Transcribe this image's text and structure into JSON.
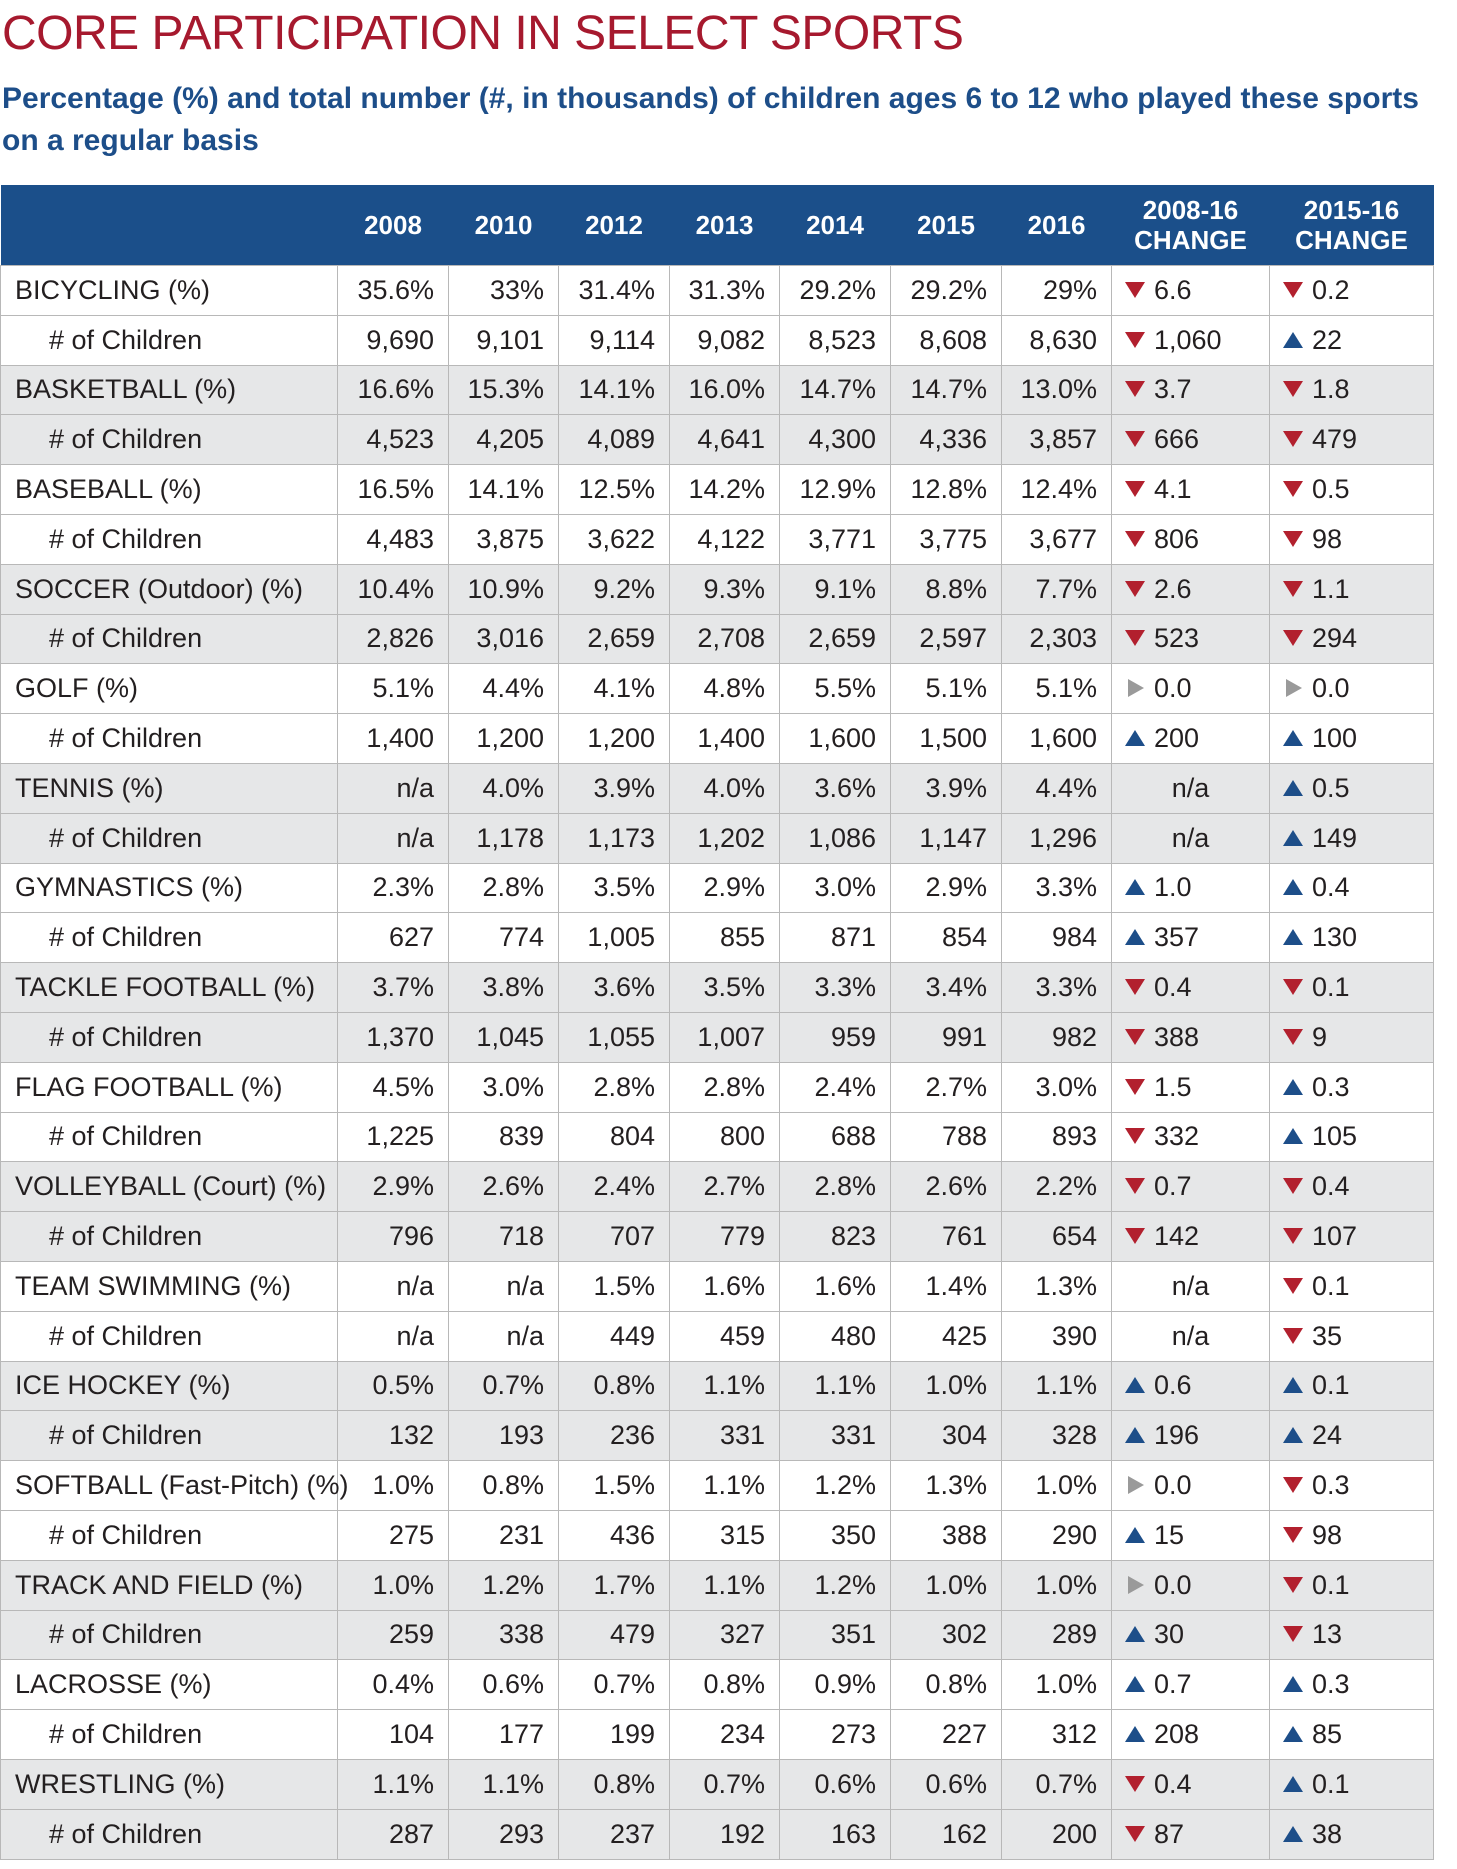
{
  "title": "CORE PARTICIPATION IN SELECT SPORTS",
  "subtitle": "Percentage (%) and total number (#, in thousands) of children ages 6 to 12 who played these sports on a regular basis",
  "table": {
    "header": [
      "2008",
      "2010",
      "2012",
      "2013",
      "2014",
      "2015",
      "2016",
      "2008-16 CHANGE",
      "2015-16 CHANGE"
    ],
    "rows": [
      {
        "label": "BICYCLING (%)",
        "cells": [
          "35.6%",
          "33%",
          "31.4%",
          "31.3%",
          "29.2%",
          "29.2%",
          "29%"
        ],
        "changes": [
          {
            "text": "6.6",
            "trend": "down"
          },
          {
            "text": "0.2",
            "trend": "down"
          }
        ]
      },
      {
        "label": "# of Children",
        "cells": [
          "9,690",
          "9,101",
          "9,114",
          "9,082",
          "8,523",
          "8,608",
          "8,630"
        ],
        "changes": [
          {
            "text": "1,060",
            "trend": "down"
          },
          {
            "text": "22",
            "trend": "up"
          }
        ]
      },
      {
        "label": "BASKETBALL (%)",
        "cells": [
          "16.6%",
          "15.3%",
          "14.1%",
          "16.0%",
          "14.7%",
          "14.7%",
          "13.0%"
        ],
        "changes": [
          {
            "text": "3.7",
            "trend": "down"
          },
          {
            "text": "1.8",
            "trend": "down"
          }
        ]
      },
      {
        "label": "# of Children",
        "cells": [
          "4,523",
          "4,205",
          "4,089",
          "4,641",
          "4,300",
          "4,336",
          "3,857"
        ],
        "changes": [
          {
            "text": "666",
            "trend": "down"
          },
          {
            "text": "479",
            "trend": "down"
          }
        ]
      },
      {
        "label": "BASEBALL (%)",
        "cells": [
          "16.5%",
          "14.1%",
          "12.5%",
          "14.2%",
          "12.9%",
          "12.8%",
          "12.4%"
        ],
        "changes": [
          {
            "text": "4.1",
            "trend": "down"
          },
          {
            "text": "0.5",
            "trend": "down"
          }
        ]
      },
      {
        "label": "# of Children",
        "cells": [
          "4,483",
          "3,875",
          "3,622",
          "4,122",
          "3,771",
          "3,775",
          "3,677"
        ],
        "changes": [
          {
            "text": "806",
            "trend": "down"
          },
          {
            "text": "98",
            "trend": "down"
          }
        ]
      },
      {
        "label": "SOCCER (Outdoor) (%)",
        "cells": [
          "10.4%",
          "10.9%",
          "9.2%",
          "9.3%",
          "9.1%",
          "8.8%",
          "7.7%"
        ],
        "changes": [
          {
            "text": "2.6",
            "trend": "down"
          },
          {
            "text": "1.1",
            "trend": "down"
          }
        ]
      },
      {
        "label": "# of Children",
        "cells": [
          "2,826",
          "3,016",
          "2,659",
          "2,708",
          "2,659",
          "2,597",
          "2,303"
        ],
        "changes": [
          {
            "text": "523",
            "trend": "down"
          },
          {
            "text": "294",
            "trend": "down"
          }
        ]
      },
      {
        "label": "GOLF (%)",
        "cells": [
          "5.1%",
          "4.4%",
          "4.1%",
          "4.8%",
          "5.5%",
          "5.1%",
          "5.1%"
        ],
        "changes": [
          {
            "text": "0.0",
            "trend": "flat"
          },
          {
            "text": "0.0",
            "trend": "flat"
          }
        ]
      },
      {
        "label": "# of Children",
        "cells": [
          "1,400",
          "1,200",
          "1,200",
          "1,400",
          "1,600",
          "1,500",
          "1,600"
        ],
        "changes": [
          {
            "text": "200",
            "trend": "up"
          },
          {
            "text": "100",
            "trend": "up"
          }
        ]
      },
      {
        "label": "TENNIS (%)",
        "cells": [
          "n/a",
          "4.0%",
          "3.9%",
          "4.0%",
          "3.6%",
          "3.9%",
          "4.4%"
        ],
        "changes": [
          {
            "text": "n/a"
          },
          {
            "text": "0.5",
            "trend": "up"
          }
        ]
      },
      {
        "label": "# of Children",
        "cells": [
          "n/a",
          "1,178",
          "1,173",
          "1,202",
          "1,086",
          "1,147",
          "1,296"
        ],
        "changes": [
          {
            "text": "n/a"
          },
          {
            "text": "149",
            "trend": "up"
          }
        ]
      },
      {
        "label": "GYMNASTICS (%)",
        "cells": [
          "2.3%",
          "2.8%",
          "3.5%",
          "2.9%",
          "3.0%",
          "2.9%",
          "3.3%"
        ],
        "changes": [
          {
            "text": "1.0",
            "trend": "up"
          },
          {
            "text": "0.4",
            "trend": "up"
          }
        ]
      },
      {
        "label": "# of Children",
        "cells": [
          "627",
          "774",
          "1,005",
          "855",
          "871",
          "854",
          "984"
        ],
        "changes": [
          {
            "text": "357",
            "trend": "up"
          },
          {
            "text": "130",
            "trend": "up"
          }
        ]
      },
      {
        "label": "TACKLE FOOTBALL (%)",
        "cells": [
          "3.7%",
          "3.8%",
          "3.6%",
          "3.5%",
          "3.3%",
          "3.4%",
          "3.3%"
        ],
        "changes": [
          {
            "text": "0.4",
            "trend": "down"
          },
          {
            "text": "0.1",
            "trend": "down"
          }
        ]
      },
      {
        "label": "# of Children",
        "cells": [
          "1,370",
          "1,045",
          "1,055",
          "1,007",
          "959",
          "991",
          "982"
        ],
        "changes": [
          {
            "text": "388",
            "trend": "down"
          },
          {
            "text": "9",
            "trend": "down"
          }
        ]
      },
      {
        "label": "FLAG FOOTBALL (%)",
        "cells": [
          "4.5%",
          "3.0%",
          "2.8%",
          "2.8%",
          "2.4%",
          "2.7%",
          "3.0%"
        ],
        "changes": [
          {
            "text": "1.5",
            "trend": "down"
          },
          {
            "text": "0.3",
            "trend": "up"
          }
        ]
      },
      {
        "label": "# of Children",
        "cells": [
          "1,225",
          "839",
          "804",
          "800",
          "688",
          "788",
          "893"
        ],
        "changes": [
          {
            "text": "332",
            "trend": "down"
          },
          {
            "text": "105",
            "trend": "up"
          }
        ]
      },
      {
        "label": "VOLLEYBALL (Court) (%)",
        "cells": [
          "2.9%",
          "2.6%",
          "2.4%",
          "2.7%",
          "2.8%",
          "2.6%",
          "2.2%"
        ],
        "changes": [
          {
            "text": "0.7",
            "trend": "down"
          },
          {
            "text": "0.4",
            "trend": "down"
          }
        ]
      },
      {
        "label": "# of Children",
        "cells": [
          "796",
          "718",
          "707",
          "779",
          "823",
          "761",
          "654"
        ],
        "changes": [
          {
            "text": "142",
            "trend": "down"
          },
          {
            "text": "107",
            "trend": "down"
          }
        ]
      },
      {
        "label": "TEAM SWIMMING (%)",
        "cells": [
          "n/a",
          "n/a",
          "1.5%",
          "1.6%",
          "1.6%",
          "1.4%",
          "1.3%"
        ],
        "changes": [
          {
            "text": "n/a"
          },
          {
            "text": "0.1",
            "trend": "down"
          }
        ]
      },
      {
        "label": "# of Children",
        "cells": [
          "n/a",
          "n/a",
          "449",
          "459",
          "480",
          "425",
          "390"
        ],
        "changes": [
          {
            "text": "n/a"
          },
          {
            "text": "35",
            "trend": "down"
          }
        ]
      },
      {
        "label": "ICE HOCKEY (%)",
        "cells": [
          "0.5%",
          "0.7%",
          "0.8%",
          "1.1%",
          "1.1%",
          "1.0%",
          "1.1%"
        ],
        "changes": [
          {
            "text": "0.6",
            "trend": "up"
          },
          {
            "text": "0.1",
            "trend": "up"
          }
        ]
      },
      {
        "label": "# of Children",
        "cells": [
          "132",
          "193",
          "236",
          "331",
          "331",
          "304",
          "328"
        ],
        "changes": [
          {
            "text": "196",
            "trend": "up"
          },
          {
            "text": "24",
            "trend": "up"
          }
        ]
      },
      {
        "label": "SOFTBALL (Fast-Pitch) (%)",
        "cells": [
          "1.0%",
          "0.8%",
          "1.5%",
          "1.1%",
          "1.2%",
          "1.3%",
          "1.0%"
        ],
        "changes": [
          {
            "text": "0.0",
            "trend": "flat"
          },
          {
            "text": "0.3",
            "trend": "down"
          }
        ]
      },
      {
        "label": "# of Children",
        "cells": [
          "275",
          "231",
          "436",
          "315",
          "350",
          "388",
          "290"
        ],
        "changes": [
          {
            "text": "15",
            "trend": "up"
          },
          {
            "text": "98",
            "trend": "down"
          }
        ]
      },
      {
        "label": "TRACK AND FIELD (%)",
        "cells": [
          "1.0%",
          "1.2%",
          "1.7%",
          "1.1%",
          "1.2%",
          "1.0%",
          "1.0%"
        ],
        "changes": [
          {
            "text": "0.0",
            "trend": "flat"
          },
          {
            "text": "0.1",
            "trend": "down"
          }
        ]
      },
      {
        "label": "# of Children",
        "cells": [
          "259",
          "338",
          "479",
          "327",
          "351",
          "302",
          "289"
        ],
        "changes": [
          {
            "text": "30",
            "trend": "up"
          },
          {
            "text": "13",
            "trend": "down"
          }
        ]
      },
      {
        "label": "LACROSSE (%)",
        "cells": [
          "0.4%",
          "0.6%",
          "0.7%",
          "0.8%",
          "0.9%",
          "0.8%",
          "1.0%"
        ],
        "changes": [
          {
            "text": "0.7",
            "trend": "up"
          },
          {
            "text": "0.3",
            "trend": "up"
          }
        ]
      },
      {
        "label": "# of Children",
        "cells": [
          "104",
          "177",
          "199",
          "234",
          "273",
          "227",
          "312"
        ],
        "changes": [
          {
            "text": "208",
            "trend": "up"
          },
          {
            "text": "85",
            "trend": "up"
          }
        ]
      },
      {
        "label": "WRESTLING (%)",
        "cells": [
          "1.1%",
          "1.1%",
          "0.8%",
          "0.7%",
          "0.6%",
          "0.6%",
          "0.7%"
        ],
        "changes": [
          {
            "text": "0.4",
            "trend": "down"
          },
          {
            "text": "0.1",
            "trend": "up"
          }
        ]
      },
      {
        "label": "# of Children",
        "cells": [
          "287",
          "293",
          "237",
          "192",
          "163",
          "162",
          "200"
        ],
        "changes": [
          {
            "text": "87",
            "trend": "down"
          },
          {
            "text": "38",
            "trend": "up"
          }
        ]
      }
    ]
  }
}
